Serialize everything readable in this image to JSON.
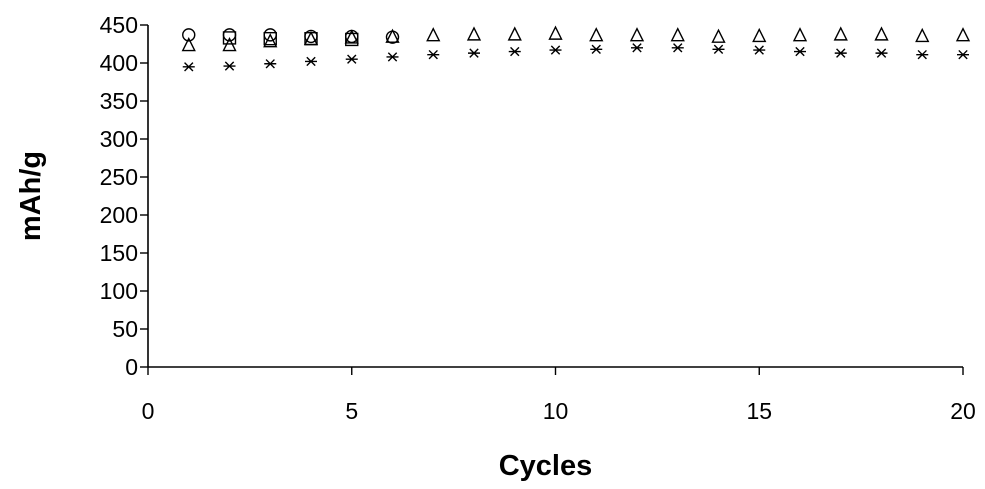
{
  "chart_data": {
    "type": "scatter",
    "title": "",
    "xlabel": "Cycles",
    "ylabel": "mAh/g",
    "xlim": [
      0,
      20
    ],
    "ylim": [
      0,
      450
    ],
    "xticks": [
      "0",
      "5",
      "10",
      "15",
      "20"
    ],
    "yticks": [
      "0",
      "50",
      "100",
      "150",
      "200",
      "250",
      "300",
      "350",
      "400",
      "450"
    ],
    "grid": false,
    "legend": "none",
    "series": [
      {
        "marker": "circle",
        "x": [
          1,
          2,
          3,
          4,
          5,
          6
        ],
        "y": [
          437,
          437,
          437,
          435,
          435,
          434
        ]
      },
      {
        "marker": "square",
        "x": [
          2,
          3,
          4,
          5
        ],
        "y": [
          433,
          432,
          432,
          431
        ]
      },
      {
        "marker": "triangle",
        "x": [
          1,
          2,
          3,
          4,
          5,
          6,
          7,
          8,
          9,
          10,
          11,
          12,
          13,
          14,
          15,
          16,
          17,
          18,
          19,
          20
        ],
        "y": [
          423,
          423,
          428,
          431,
          433,
          434,
          436,
          437,
          437,
          438,
          436,
          436,
          436,
          434,
          435,
          436,
          437,
          437,
          435,
          436
        ]
      },
      {
        "marker": "asterisk",
        "x": [
          1,
          2,
          3,
          4,
          5,
          6,
          7,
          8,
          9,
          10,
          11,
          12,
          13,
          14,
          15,
          16,
          17,
          18,
          19,
          20
        ],
        "y": [
          395,
          396,
          399,
          402,
          405,
          408,
          411,
          413,
          415,
          417,
          418,
          420,
          420,
          418,
          417,
          415,
          413,
          413,
          411,
          411
        ]
      }
    ]
  }
}
